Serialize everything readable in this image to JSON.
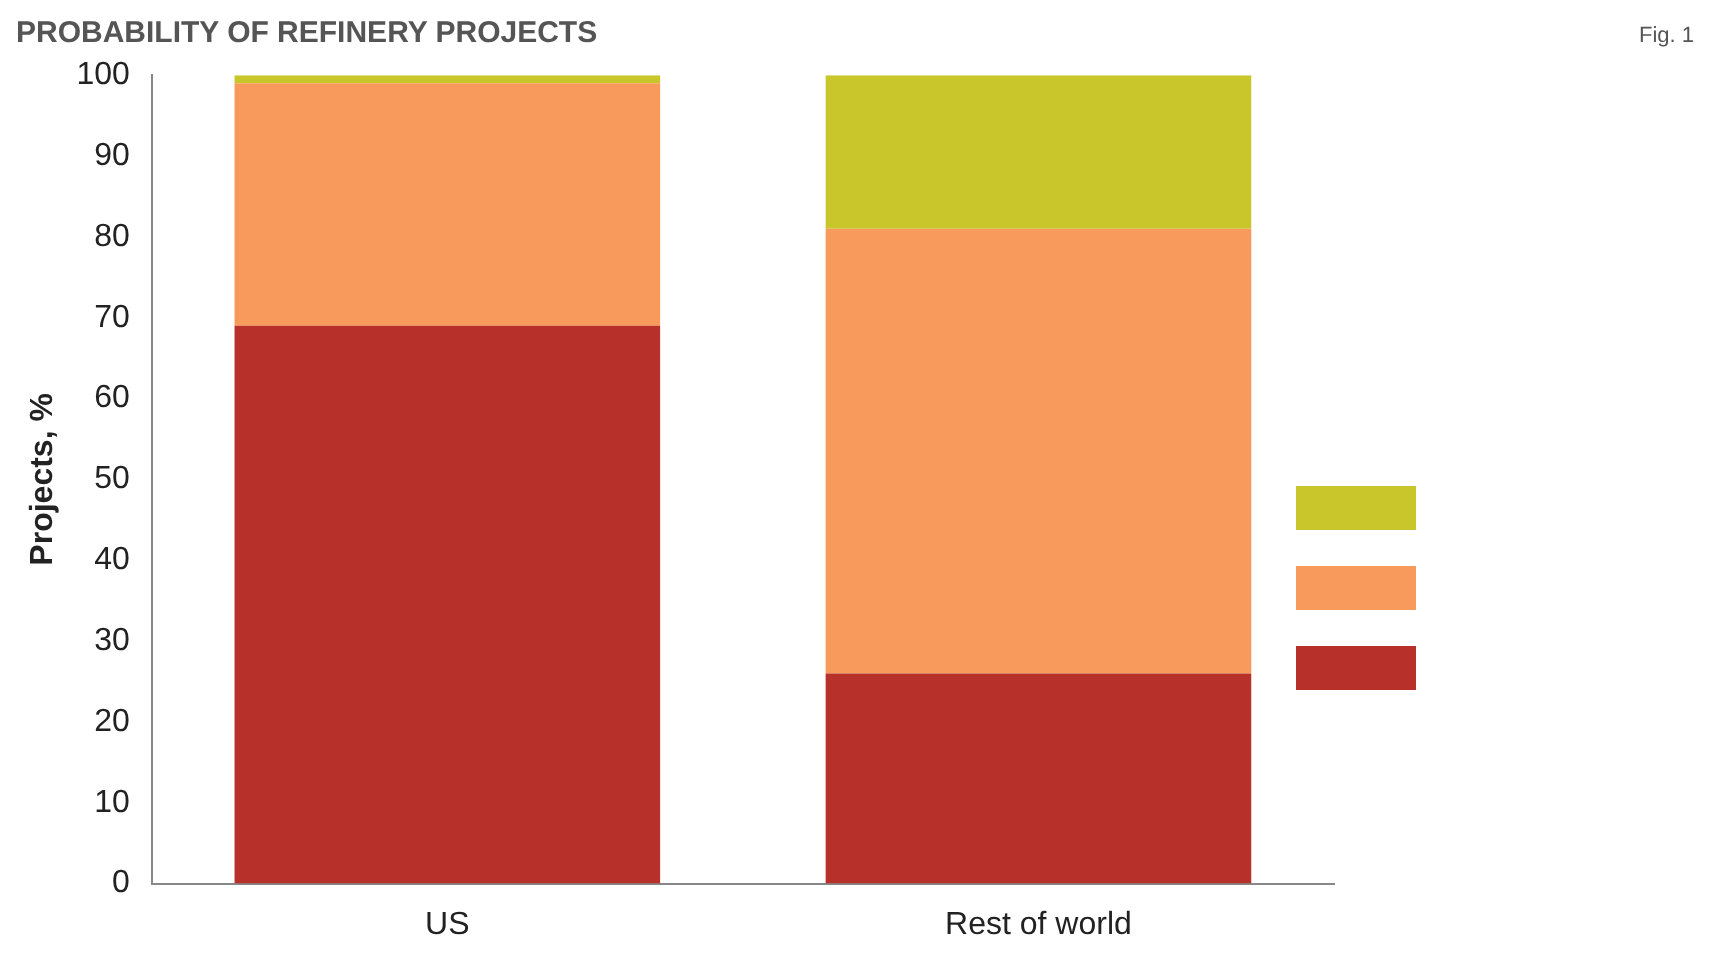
{
  "chart_data": {
    "type": "bar",
    "title": "PROBABILITY OF REFINERY PROJECTS",
    "annotations": [
      "Fig. 1"
    ],
    "ylabel": "Projects, %",
    "categories": [
      "US",
      "Rest of world"
    ],
    "stacked": true,
    "ylim": [
      0,
      100
    ],
    "yticks": [
      0,
      10,
      20,
      30,
      40,
      50,
      60,
      70,
      80,
      90,
      100
    ],
    "grid": false,
    "series": [
      {
        "color": "#b8302a",
        "values": [
          69,
          26
        ]
      },
      {
        "color": "#f79a5c",
        "values": [
          30,
          55
        ]
      },
      {
        "color": "#c8c62a",
        "values": [
          1,
          19
        ]
      }
    ]
  }
}
